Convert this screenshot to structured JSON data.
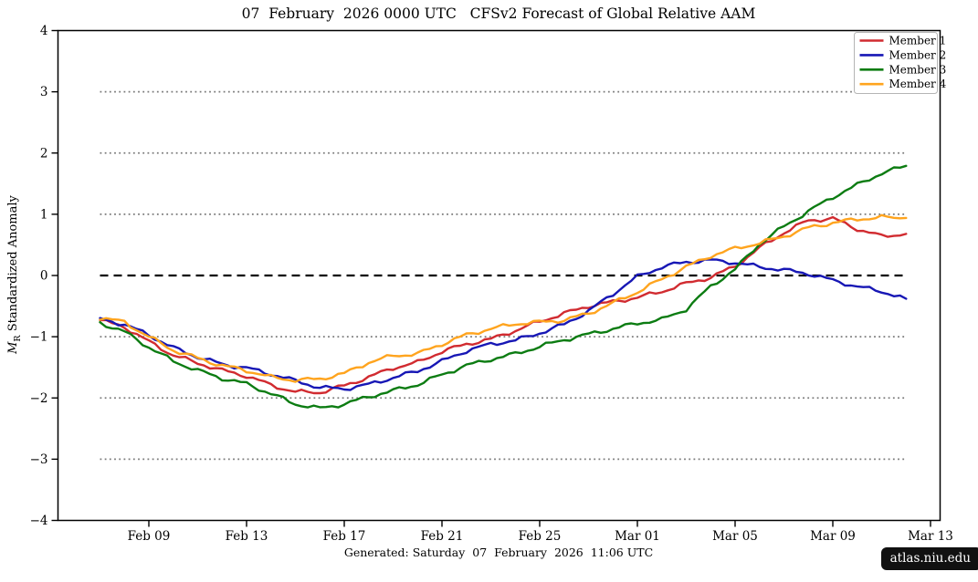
{
  "figure": {
    "title": "07  February  2026 0000 UTC   CFSv2 Forecast of Global Relative AAM",
    "caption": "Generated: Saturday  07  February  2026  11:06 UTC",
    "badge": "atlas.niu.edu",
    "ylabel": {
      "symbol": "M",
      "symbol_sub": "R",
      "rest": " Standardized Anomaly"
    }
  },
  "colors": {
    "axis": "#000000",
    "grid_dotted": "#7a7a7a",
    "zero_dashed": "#000000",
    "legend_border": "#b5b5b5",
    "badge_bg": "#111111",
    "badge_text": "#ffffff"
  },
  "chart_data": {
    "type": "line",
    "title": "07  February  2026 0000 UTC   CFSv2 Forecast of Global Relative AAM",
    "xlabel": "",
    "ylabel": "M_R Standardized Anomaly",
    "ylim": [
      -4,
      4
    ],
    "yticks": [
      4,
      3,
      2,
      1,
      0,
      -1,
      -2,
      -3,
      -4
    ],
    "xtick_labels": [
      "Feb 09",
      "Feb 13",
      "Feb 17",
      "Feb 21",
      "Feb 25",
      "Mar 01",
      "Mar 05",
      "Mar 09",
      "Mar 13"
    ],
    "grid": "horizontal dotted lines at +-1, +-2, +-3; black dashed line at 0",
    "legend_position": "upper right",
    "dates": [
      "Feb 07",
      "Feb 08",
      "Feb 09",
      "Feb 10",
      "Feb 11",
      "Feb 12",
      "Feb 13",
      "Feb 14",
      "Feb 15",
      "Feb 16",
      "Feb 17",
      "Feb 18",
      "Feb 19",
      "Feb 20",
      "Feb 21",
      "Feb 22",
      "Feb 23",
      "Feb 24",
      "Feb 25",
      "Feb 26",
      "Feb 27",
      "Feb 28",
      "Mar 01",
      "Mar 02",
      "Mar 03",
      "Mar 04",
      "Mar 05",
      "Mar 06",
      "Mar 07",
      "Mar 08",
      "Mar 09",
      "Mar 10",
      "Mar 11",
      "Mar 12"
    ],
    "series": [
      {
        "name": "Member 1",
        "color": "#d12b30",
        "values": [
          -0.73,
          -0.84,
          -1.08,
          -1.3,
          -1.43,
          -1.55,
          -1.64,
          -1.79,
          -1.9,
          -1.91,
          -1.8,
          -1.66,
          -1.51,
          -1.42,
          -1.24,
          -1.12,
          -1.04,
          -0.9,
          -0.75,
          -0.62,
          -0.5,
          -0.43,
          -0.36,
          -0.26,
          -0.13,
          -0.03,
          0.15,
          0.45,
          0.7,
          0.9,
          0.93,
          0.76,
          0.64,
          0.68
        ]
      },
      {
        "name": "Member 2",
        "color": "#1717b5",
        "values": [
          -0.71,
          -0.8,
          -0.97,
          -1.18,
          -1.33,
          -1.45,
          -1.51,
          -1.61,
          -1.72,
          -1.83,
          -1.85,
          -1.78,
          -1.67,
          -1.56,
          -1.4,
          -1.23,
          -1.12,
          -1.06,
          -0.94,
          -0.8,
          -0.58,
          -0.3,
          -0.02,
          0.14,
          0.22,
          0.25,
          0.21,
          0.14,
          0.09,
          0.03,
          -0.08,
          -0.18,
          -0.26,
          -0.38
        ]
      },
      {
        "name": "Member 3",
        "color": "#0c7c12",
        "values": [
          -0.77,
          -0.92,
          -1.17,
          -1.4,
          -1.55,
          -1.68,
          -1.77,
          -1.93,
          -2.1,
          -2.17,
          -2.1,
          -1.98,
          -1.88,
          -1.78,
          -1.62,
          -1.47,
          -1.37,
          -1.28,
          -1.16,
          -1.05,
          -0.96,
          -0.87,
          -0.78,
          -0.72,
          -0.55,
          -0.18,
          0.1,
          0.52,
          0.8,
          1.05,
          1.28,
          1.48,
          1.67,
          1.79
        ]
      },
      {
        "name": "Member 4",
        "color": "#ffa41e",
        "values": [
          -0.69,
          -0.76,
          -1.0,
          -1.22,
          -1.35,
          -1.47,
          -1.55,
          -1.66,
          -1.71,
          -1.69,
          -1.6,
          -1.42,
          -1.31,
          -1.28,
          -1.12,
          -0.97,
          -0.87,
          -0.79,
          -0.76,
          -0.73,
          -0.62,
          -0.45,
          -0.27,
          -0.06,
          0.14,
          0.32,
          0.44,
          0.53,
          0.64,
          0.78,
          0.86,
          0.92,
          0.95,
          0.94
        ]
      }
    ]
  }
}
